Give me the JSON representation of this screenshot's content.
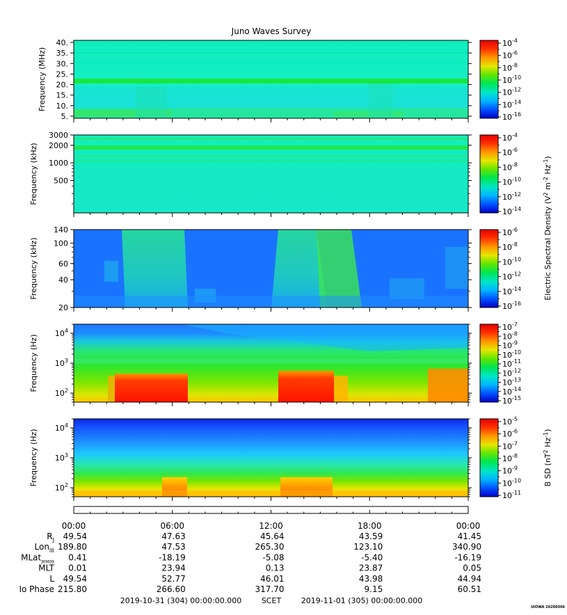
{
  "title": "Juno Waves Survey",
  "footer_stamp": "UIOWA 20200306",
  "colors": {
    "colormap": [
      "#0000c8",
      "#0050ff",
      "#00b4ff",
      "#00e6c8",
      "#00e650",
      "#64e600",
      "#e6e600",
      "#ff9600",
      "#ff3200",
      "#e60000"
    ]
  },
  "chart_data": [
    {
      "type": "heatmap",
      "title": "",
      "ylabel": "Frequency (MHz)",
      "yscale": "linear",
      "ylim": [
        4,
        41
      ],
      "yticks": [
        {
          "v": 40,
          "label": "40."
        },
        {
          "v": 35,
          "label": "35."
        },
        {
          "v": 30,
          "label": "30."
        },
        {
          "v": 25,
          "label": "25."
        },
        {
          "v": 20,
          "label": "20."
        },
        {
          "v": 15,
          "label": "15."
        },
        {
          "v": 10,
          "label": "10."
        },
        {
          "v": 5,
          "label": "5."
        }
      ],
      "colorbar": {
        "scale": "log",
        "labels": [
          {
            "base": "10",
            "exp": "-4"
          },
          {
            "base": "10",
            "exp": "-6"
          },
          {
            "base": "10",
            "exp": "-8"
          },
          {
            "base": "10",
            "exp": "-10"
          },
          {
            "base": "10",
            "exp": "-12"
          },
          {
            "base": "10",
            "exp": "-14"
          },
          {
            "base": "10",
            "exp": "-16"
          }
        ]
      }
    },
    {
      "type": "heatmap",
      "title": "",
      "ylabel": "Frequency (kHz)",
      "yscale": "log",
      "ylim": [
        140,
        3000
      ],
      "yticks": [
        {
          "v": 3000,
          "label": "3000"
        },
        {
          "v": 2000,
          "label": "2000"
        },
        {
          "v": 1000,
          "label": "1000"
        },
        {
          "v": 500,
          "label": "500"
        }
      ],
      "colorbar": {
        "scale": "log",
        "labels": [
          {
            "base": "10",
            "exp": "-4"
          },
          {
            "base": "10",
            "exp": "-6"
          },
          {
            "base": "10",
            "exp": "-8"
          },
          {
            "base": "10",
            "exp": "-10"
          },
          {
            "base": "10",
            "exp": "-12"
          },
          {
            "base": "10",
            "exp": "-14"
          }
        ]
      }
    },
    {
      "type": "heatmap",
      "title": "",
      "ylabel": "Frequency (kHz)",
      "yscale": "log",
      "ylim": [
        20,
        140
      ],
      "yticks": [
        {
          "v": 140,
          "label": "140"
        },
        {
          "v": 100,
          "label": "100"
        },
        {
          "v": 60,
          "label": "60"
        },
        {
          "v": 40,
          "label": "40"
        },
        {
          "v": 20,
          "label": "20"
        }
      ],
      "colorbar": {
        "scale": "log",
        "labels": [
          {
            "base": "10",
            "exp": "-6"
          },
          {
            "base": "10",
            "exp": "-8"
          },
          {
            "base": "10",
            "exp": "-10"
          },
          {
            "base": "10",
            "exp": "-12"
          },
          {
            "base": "10",
            "exp": "-14"
          },
          {
            "base": "10",
            "exp": "-16"
          }
        ]
      }
    },
    {
      "type": "heatmap",
      "title": "",
      "ylabel": "Frequency (Hz)",
      "yscale": "log",
      "ylim": [
        50,
        20000
      ],
      "yticks": [
        {
          "v": 10000,
          "base": "10",
          "exp": "4"
        },
        {
          "v": 1000,
          "base": "10",
          "exp": "3"
        },
        {
          "v": 100,
          "base": "10",
          "exp": "2"
        }
      ],
      "colorbar": {
        "scale": "log",
        "labels": [
          {
            "base": "10",
            "exp": "-7"
          },
          {
            "base": "10",
            "exp": "-8"
          },
          {
            "base": "10",
            "exp": "-9"
          },
          {
            "base": "10",
            "exp": "-10"
          },
          {
            "base": "10",
            "exp": "-11"
          },
          {
            "base": "10",
            "exp": "-12"
          },
          {
            "base": "10",
            "exp": "-13"
          },
          {
            "base": "10",
            "exp": "-14"
          },
          {
            "base": "10",
            "exp": "-15"
          }
        ]
      }
    },
    {
      "type": "heatmap",
      "title": "",
      "ylabel": "Frequency (Hz)",
      "yscale": "log",
      "ylim": [
        50,
        20000
      ],
      "yticks": [
        {
          "v": 10000,
          "base": "10",
          "exp": "4"
        },
        {
          "v": 1000,
          "base": "10",
          "exp": "3"
        },
        {
          "v": 100,
          "base": "10",
          "exp": "2"
        }
      ],
      "colorbar": {
        "scale": "log",
        "labels": [
          {
            "base": "10",
            "exp": "-5"
          },
          {
            "base": "10",
            "exp": "-6"
          },
          {
            "base": "10",
            "exp": "-7"
          },
          {
            "base": "10",
            "exp": "-8"
          },
          {
            "base": "10",
            "exp": "-9"
          },
          {
            "base": "10",
            "exp": "-10"
          },
          {
            "base": "10",
            "exp": "-11"
          }
        ]
      }
    }
  ],
  "colorbar_titles": {
    "e_field": {
      "pre": "Electric Spectral Density (V",
      "sup1": "2",
      "mid": " m",
      "sup2": "-2",
      "mid2": " Hz",
      "sup3": "-1",
      "post": ")"
    },
    "b_field": {
      "pre": "B SD (nT",
      "sup1": "2",
      "mid": " Hz",
      "sup2": "-1",
      "post": ")"
    }
  },
  "time_axis": {
    "labels": [
      "00:00",
      "06:00",
      "12:00",
      "18:00",
      "00:00"
    ]
  },
  "ephemeris": {
    "rows": [
      {
        "label": "R",
        "sub": "J",
        "values": [
          "49.54",
          "47.63",
          "45.64",
          "43.59",
          "41.45"
        ]
      },
      {
        "label": "Lon",
        "sub": "III",
        "values": [
          "189.80",
          "47.53",
          "265.30",
          "123.10",
          "340.90"
        ]
      },
      {
        "label": "MLat",
        "sub": "JRM09",
        "values": [
          "0.41",
          "-18.19",
          "-5.08",
          "-5.40",
          "-16.19"
        ]
      },
      {
        "label": "MLT",
        "sub": "",
        "values": [
          "0.01",
          "23.94",
          "0.13",
          "23.87",
          "0.05"
        ]
      },
      {
        "label": "L",
        "sub": "",
        "values": [
          "49.54",
          "52.77",
          "46.01",
          "43.98",
          "44.94"
        ]
      },
      {
        "label": "Io Phase",
        "sub": "",
        "values": [
          "215.80",
          "266.60",
          "317.70",
          "9.15",
          "60.51"
        ]
      }
    ]
  },
  "footer": {
    "start": "2019-10-31 (304) 00:00:00.000",
    "scet": "SCET",
    "end": "2019-11-01 (305) 00:00:00.000"
  }
}
